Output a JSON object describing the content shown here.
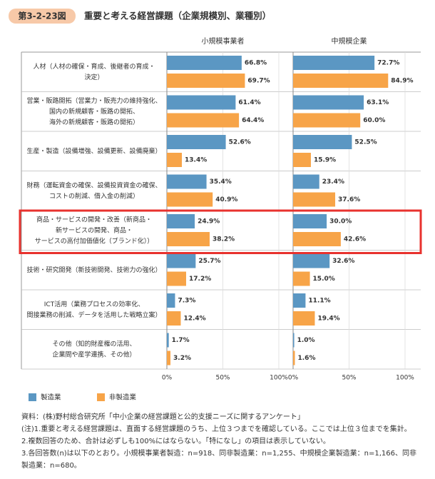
{
  "chart_data": {
    "type": "bar",
    "figure_number": "第3-2-23図",
    "title": "重要と考える経営課題（企業規模別、業種別）",
    "categories": [
      [
        "人材（人材の確保・育成、後継者の育成・",
        "決定）"
      ],
      [
        "営業・販路開拓（営業力・販売力の維持強化、",
        "国内の新規顧客・販路の開拓、",
        "海外の新規顧客・販路の開拓）"
      ],
      [
        "生産・製造（設備増強、設備更新、設備廃棄）"
      ],
      [
        "財務（運転資金の確保、設備投資資金の確保、",
        "コストの削減、借入金の削減）"
      ],
      [
        "商品・サービスの開発・改善（新商品・",
        "新サービスの開発、商品・",
        "サービスの高付加価値化（ブランド化））"
      ],
      [
        "技術・研究開発（新技術開発、技術力の強化）"
      ],
      [
        "ICT活用（業務プロセスの効率化、",
        "間接業務の削減、データを活用した戦略立案）"
      ],
      [
        "その他（知的財産権の活用、",
        "企業間や産学連携、その他）"
      ]
    ],
    "legend": [
      {
        "name": "製造業",
        "color": "#5b97c3"
      },
      {
        "name": "非製造業",
        "color": "#f7a448"
      }
    ],
    "panels": [
      {
        "title": "小規模事業者",
        "xlim": [
          0,
          100
        ],
        "xticks": [
          {
            "value": 0,
            "label": "0%"
          },
          {
            "value": 50,
            "label": "50%"
          },
          {
            "value": 100,
            "label": "100%"
          }
        ],
        "series": [
          {
            "values": [
              66.8,
              61.4,
              52.6,
              35.4,
              24.9,
              25.7,
              7.3,
              1.7
            ],
            "value_labels": [
              "66.8%",
              "61.4%",
              "52.6%",
              "35.4%",
              "24.9%",
              "25.7%",
              "7.3%",
              "1.7%"
            ]
          },
          {
            "values": [
              69.7,
              64.4,
              13.4,
              40.9,
              38.2,
              17.2,
              12.4,
              3.2
            ],
            "value_labels": [
              "69.7%",
              "64.4%",
              "13.4%",
              "40.9%",
              "38.2%",
              "17.2%",
              "12.4%",
              "3.2%"
            ]
          }
        ]
      },
      {
        "title": "中規模企業",
        "xlim": [
          0,
          100
        ],
        "xticks": [
          {
            "value": 0,
            "label": "0%"
          },
          {
            "value": 50,
            "label": "50%"
          },
          {
            "value": 100,
            "label": "100%"
          }
        ],
        "series": [
          {
            "values": [
              72.7,
              63.1,
              52.5,
              23.4,
              30.0,
              32.6,
              11.1,
              1.0
            ],
            "value_labels": [
              "72.7%",
              "63.1%",
              "52.5%",
              "23.4%",
              "30.0%",
              "32.6%",
              "11.1%",
              "1.0%"
            ]
          },
          {
            "values": [
              84.9,
              60.0,
              15.9,
              37.6,
              42.6,
              15.0,
              19.4,
              1.6
            ],
            "value_labels": [
              "84.9%",
              "60.0%",
              "15.9%",
              "37.6%",
              "42.6%",
              "15.0%",
              "19.4%",
              "1.6%"
            ]
          }
        ]
      }
    ]
  },
  "notes": [
    "資料：(株)野村総合研究所「中小企業の経営課題と公的支援ニーズに関するアンケート」",
    "(注)1.重要と考える経営課題は、直面する経営課題のうち、上位３つまでを確認している。ここでは上位３位までを集計。",
    "2.複数回答のため、合計は必ずしも100%にはならない。「特になし」の項目は表示していない。",
    "3.各回答数(n)は以下のとおり。小規模事業者製造：n=918、同非製造業：n=1,255、中規模企業製造業：n=1,166、同非製造業：n=680。"
  ]
}
